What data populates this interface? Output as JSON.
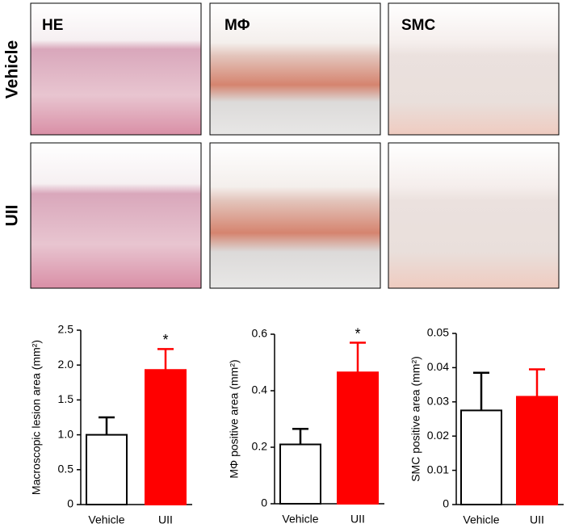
{
  "panels": {
    "columns": [
      "HE",
      "MΦ",
      "SMC"
    ],
    "rows": [
      "Vehicle",
      "UII"
    ]
  },
  "chart_data": [
    {
      "type": "bar",
      "y_label": "Macroscopic lesion area (mm²)",
      "categories": [
        "Vehicle",
        "UII"
      ],
      "values": [
        1.0,
        1.93
      ],
      "errors": [
        0.25,
        0.3
      ],
      "colors": [
        "#ffffff",
        "#ff0000"
      ],
      "significance": [
        null,
        "*"
      ],
      "ylim": [
        0,
        2.5
      ],
      "yticks": [
        0,
        0.5,
        {
          "value": 1,
          "label": "1.0"
        },
        1.5,
        {
          "value": 2,
          "label": "2.0"
        },
        2.5
      ]
    },
    {
      "type": "bar",
      "y_label": "MΦ positive area (mm²)",
      "categories": [
        "Vehicle",
        "UII"
      ],
      "values": [
        0.21,
        0.465
      ],
      "errors": [
        0.055,
        0.105
      ],
      "colors": [
        "#ffffff",
        "#ff0000"
      ],
      "significance": [
        null,
        "*"
      ],
      "ylim": [
        0,
        0.6
      ],
      "yticks": [
        0,
        0.2,
        0.4,
        0.6
      ]
    },
    {
      "type": "bar",
      "y_label": "SMC positive area (mm²)",
      "categories": [
        "Vehicle",
        "UII"
      ],
      "values": [
        0.0275,
        0.0315
      ],
      "errors": [
        0.011,
        0.008
      ],
      "colors": [
        "#ffffff",
        "#ff0000"
      ],
      "ylim": [
        0,
        0.05
      ],
      "yticks": [
        0,
        0.01,
        0.02,
        0.03,
        0.04,
        0.05
      ]
    }
  ]
}
